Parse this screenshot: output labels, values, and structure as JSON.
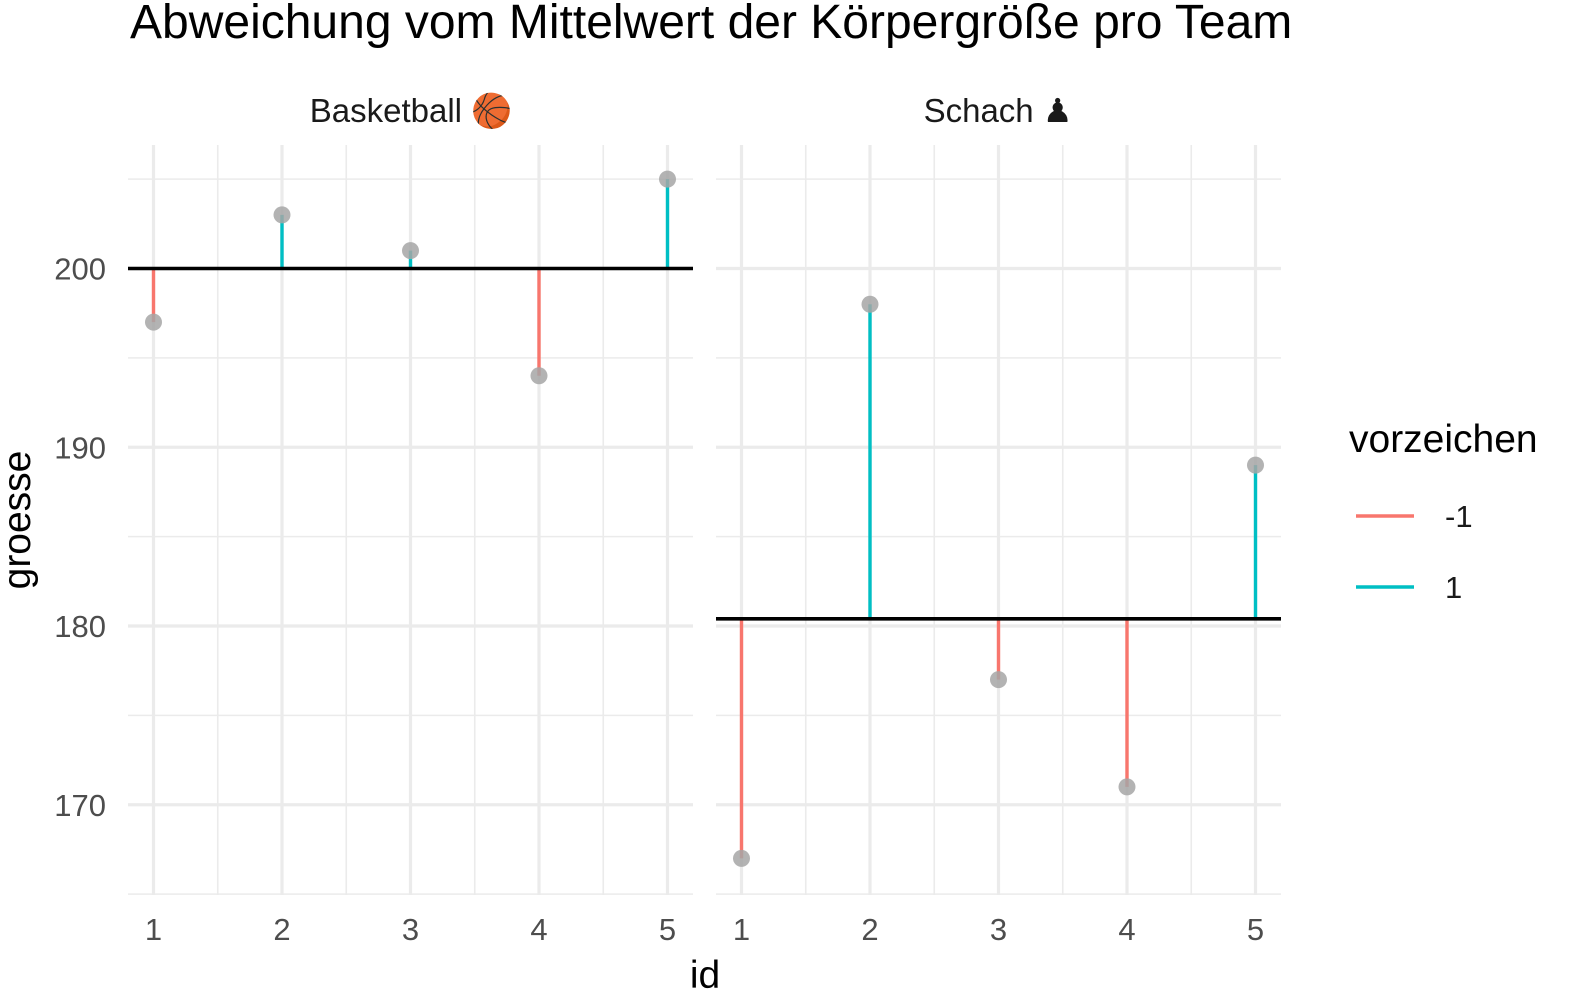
{
  "chart_data": {
    "type": "lollipop",
    "title": "Abweichung vom Mittelwert der Körpergröße pro Team",
    "xlabel": "id",
    "ylabel": "groesse",
    "x_ticks": [
      1,
      2,
      3,
      4,
      5
    ],
    "y_ticks": [
      170,
      180,
      190,
      200
    ],
    "ylim": [
      165,
      207
    ],
    "grid": true,
    "legend": {
      "title": "vorzeichen",
      "position": "right",
      "entries": [
        {
          "label": "-1",
          "color": "#F8766D"
        },
        {
          "label": "1",
          "color": "#00BFC4"
        }
      ]
    },
    "point_color": "#a6a6a6",
    "facets": [
      {
        "label": "Basketball 🏀",
        "mean": 200,
        "points": [
          {
            "id": 1,
            "groesse": 197,
            "vorzeichen": -1
          },
          {
            "id": 2,
            "groesse": 203,
            "vorzeichen": 1
          },
          {
            "id": 3,
            "groesse": 201,
            "vorzeichen": 1
          },
          {
            "id": 4,
            "groesse": 194,
            "vorzeichen": -1
          },
          {
            "id": 5,
            "groesse": 205,
            "vorzeichen": 1
          }
        ]
      },
      {
        "label": "Schach ♟",
        "mean": 180.4,
        "points": [
          {
            "id": 1,
            "groesse": 167,
            "vorzeichen": -1
          },
          {
            "id": 2,
            "groesse": 198,
            "vorzeichen": 1
          },
          {
            "id": 3,
            "groesse": 177,
            "vorzeichen": -1
          },
          {
            "id": 4,
            "groesse": 171,
            "vorzeichen": -1
          },
          {
            "id": 5,
            "groesse": 189,
            "vorzeichen": 1
          }
        ]
      }
    ]
  }
}
